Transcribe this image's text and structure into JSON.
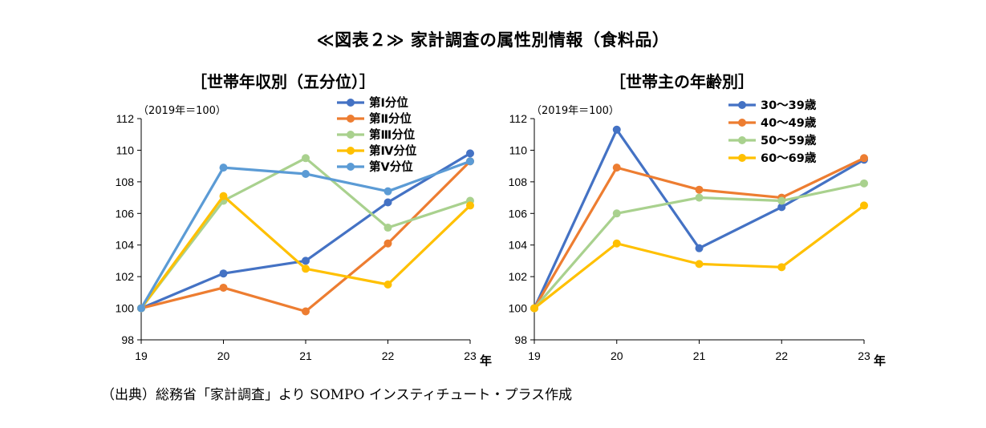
{
  "title": "≪図表２≫ 家計調査の属性別情報（食料品）",
  "source": "（出典）総務省「家計調査」より SOMPO インスティチュート・プラス作成",
  "chart_data": [
    {
      "type": "line",
      "title": "［世帯年収別（五分位）］",
      "note": "（2019年＝100）",
      "categories": [
        "19",
        "20",
        "21",
        "22",
        "23"
      ],
      "x_unit": "年",
      "ylim": [
        98,
        112
      ],
      "yticks": [
        98,
        100,
        102,
        104,
        106,
        108,
        110,
        112
      ],
      "legend_position": "top-right",
      "series": [
        {
          "name": "第Ⅰ分位",
          "color": "#4472C4",
          "values": [
            100,
            102.2,
            103.0,
            106.7,
            109.8
          ]
        },
        {
          "name": "第Ⅱ分位",
          "color": "#ED7D31",
          "values": [
            100,
            101.3,
            99.8,
            104.1,
            109.3
          ]
        },
        {
          "name": "第Ⅲ分位",
          "color": "#A9D18E",
          "values": [
            100,
            106.8,
            109.5,
            105.1,
            106.8
          ]
        },
        {
          "name": "第Ⅳ分位",
          "color": "#FFC000",
          "values": [
            100,
            107.1,
            102.5,
            101.5,
            106.5
          ]
        },
        {
          "name": "第Ⅴ分位",
          "color": "#5B9BD5",
          "values": [
            100,
            108.9,
            108.5,
            107.4,
            109.3
          ]
        }
      ]
    },
    {
      "type": "line",
      "title": "［世帯主の年齢別］",
      "note": "（2019年＝100）",
      "categories": [
        "19",
        "20",
        "21",
        "22",
        "23"
      ],
      "x_unit": "年",
      "ylim": [
        98,
        112
      ],
      "yticks": [
        98,
        100,
        102,
        104,
        106,
        108,
        110,
        112
      ],
      "legend_position": "top-right",
      "series": [
        {
          "name": "30～39歳",
          "color": "#4472C4",
          "values": [
            100,
            111.3,
            103.8,
            106.4,
            109.4
          ]
        },
        {
          "name": "40～49歳",
          "color": "#ED7D31",
          "values": [
            100,
            108.9,
            107.5,
            107.0,
            109.5
          ]
        },
        {
          "name": "50～59歳",
          "color": "#A9D18E",
          "values": [
            100,
            106.0,
            107.0,
            106.8,
            107.9
          ]
        },
        {
          "name": "60～69歳",
          "color": "#FFC000",
          "values": [
            100,
            104.1,
            102.8,
            102.6,
            106.5
          ]
        }
      ]
    }
  ]
}
